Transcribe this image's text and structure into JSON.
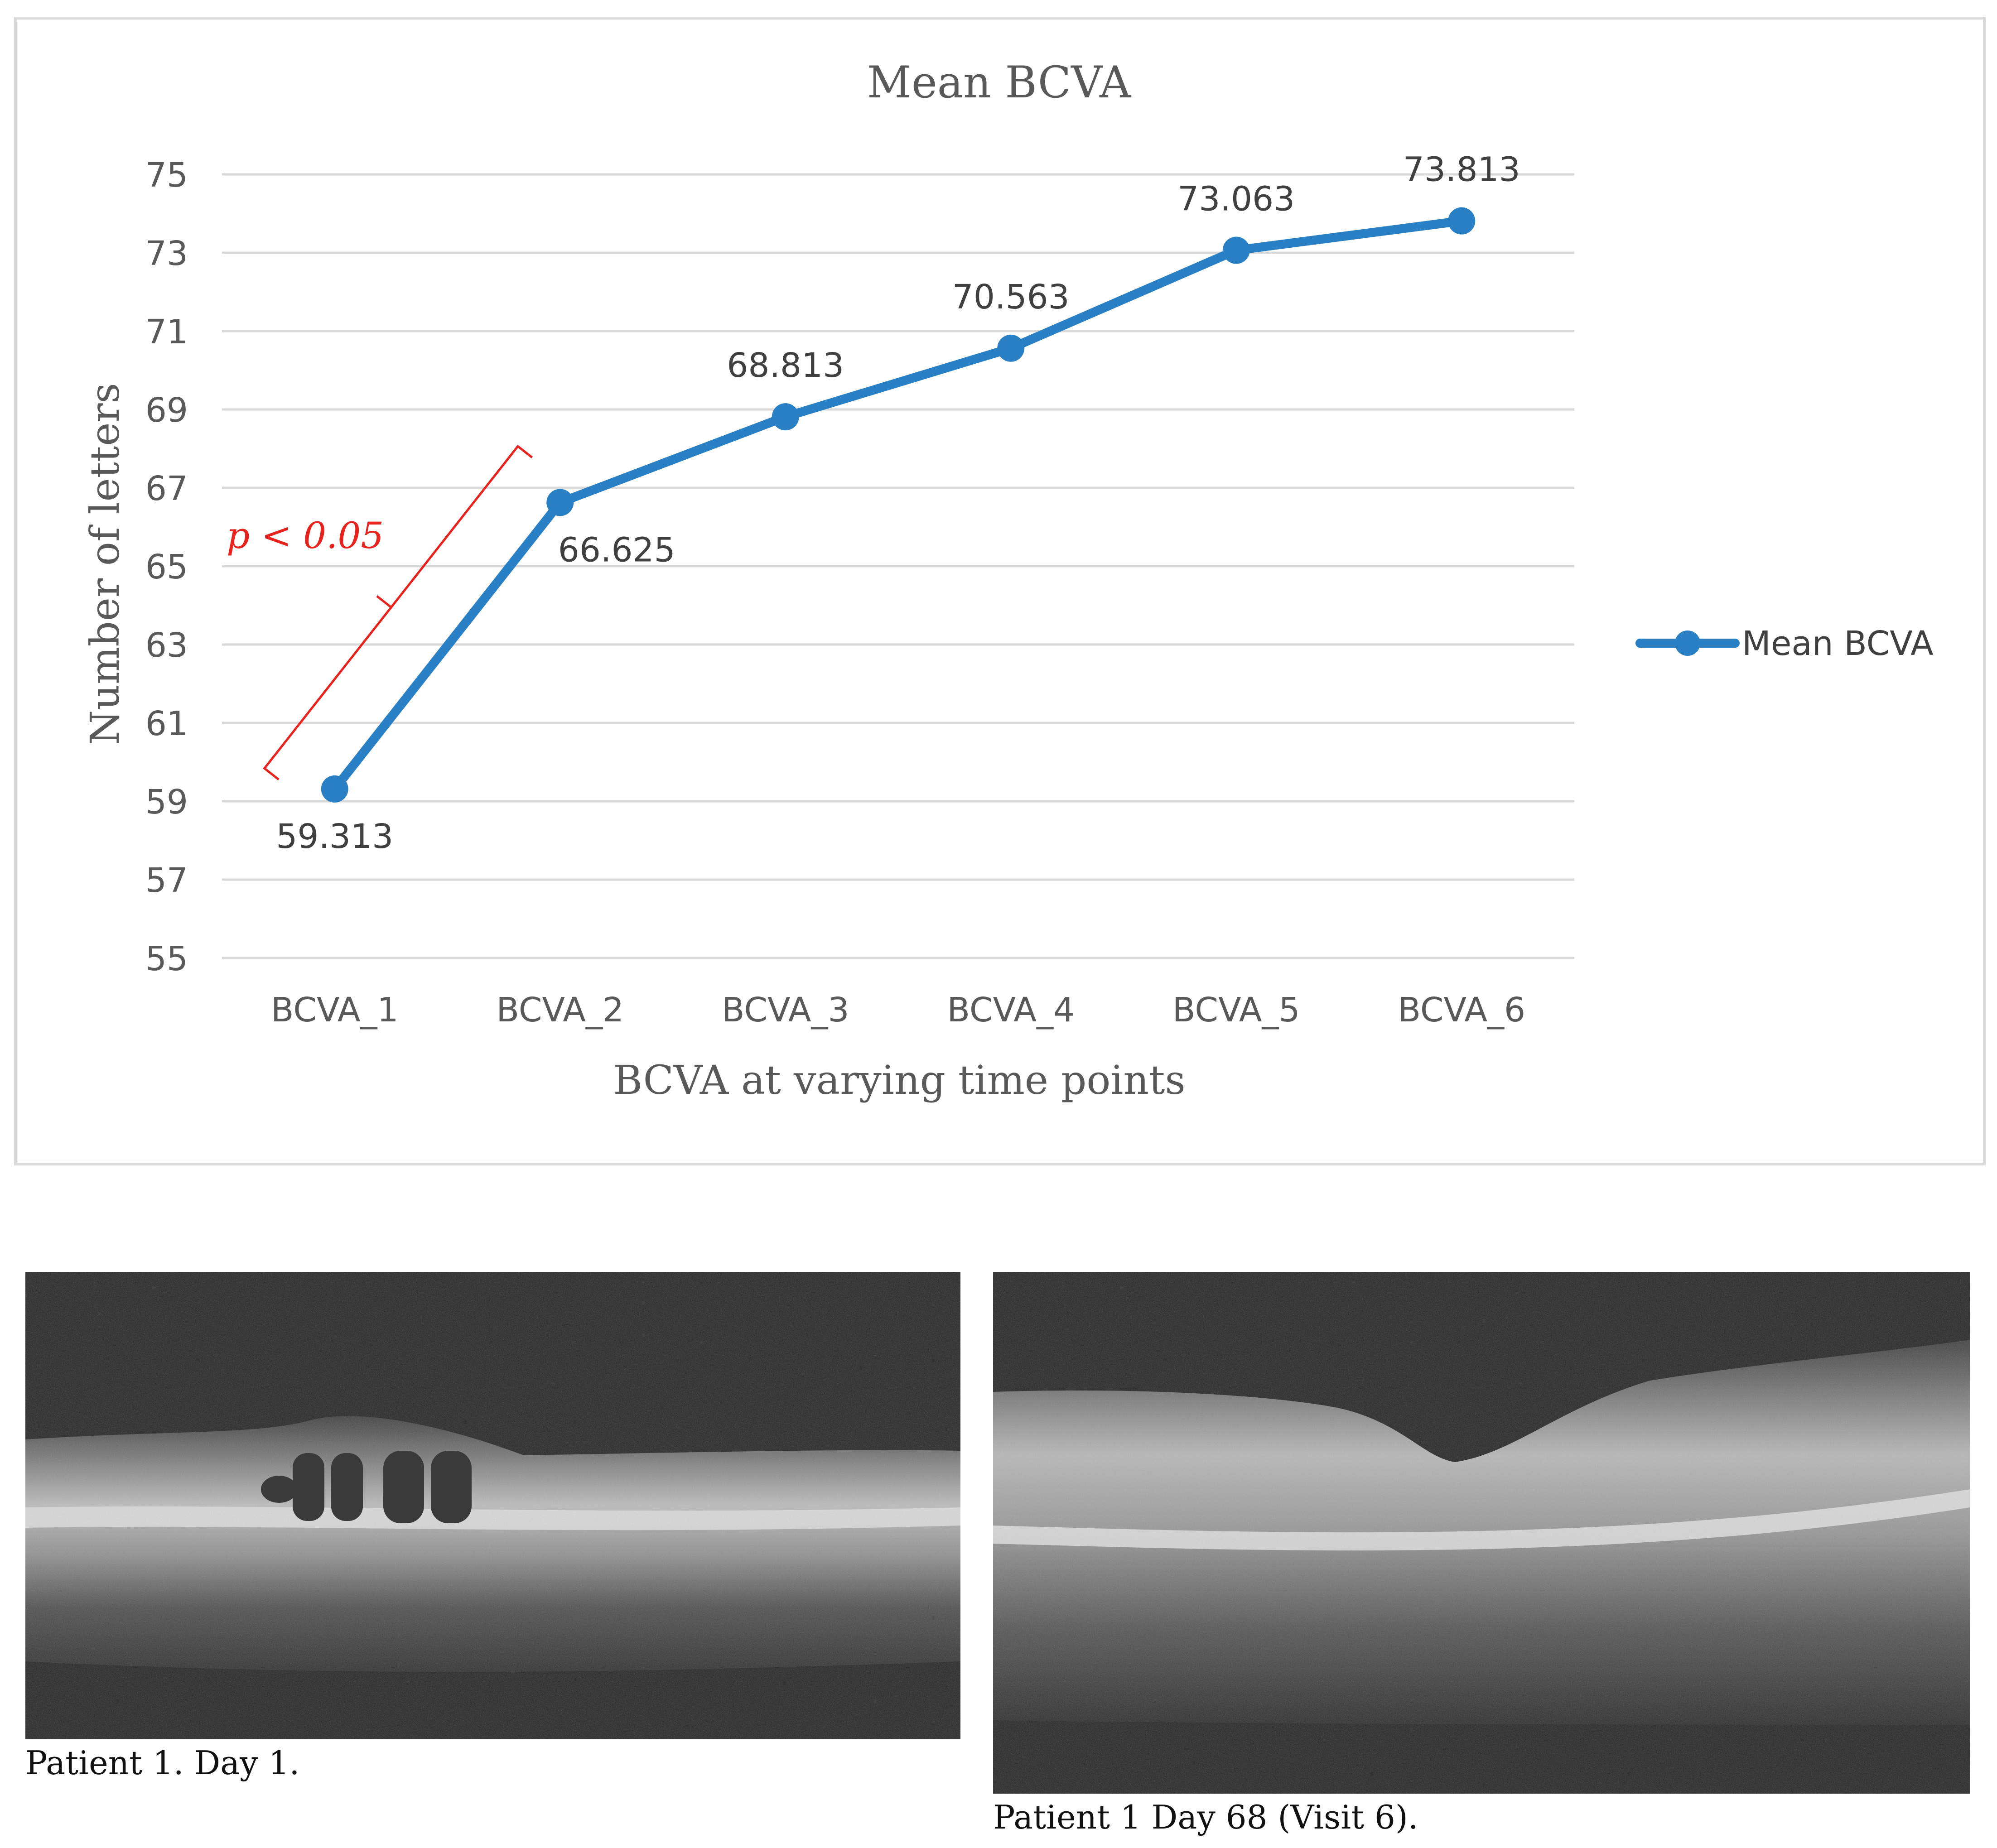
{
  "chart_data": {
    "type": "line",
    "title": "Mean BCVA",
    "xlabel": "BCVA at varying time points",
    "ylabel": "Number of letters",
    "categories": [
      "BCVA_1",
      "BCVA_2",
      "BCVA_3",
      "BCVA_4",
      "BCVA_5",
      "BCVA_6"
    ],
    "series": [
      {
        "name": "Mean BCVA",
        "values": [
          59.313,
          66.625,
          68.813,
          70.563,
          73.063,
          73.813
        ],
        "labels": [
          "59.313",
          "66.625",
          "68.813",
          "70.563",
          "73.063",
          "73.813"
        ],
        "color": "#2980c4"
      }
    ],
    "ylim": [
      55,
      75
    ],
    "yticks": [
      "55",
      "57",
      "59",
      "61",
      "63",
      "65",
      "67",
      "69",
      "71",
      "73",
      "75"
    ],
    "grid": true,
    "legend": "right",
    "annotation": {
      "text": "p < 0.05",
      "from_category": "BCVA_1",
      "to_category": "BCVA_2",
      "color": "#e8231e"
    }
  },
  "images": [
    {
      "caption": "Patient 1. Day 1."
    },
    {
      "caption": "Patient 1 Day 68 (Visit 6)."
    }
  ]
}
